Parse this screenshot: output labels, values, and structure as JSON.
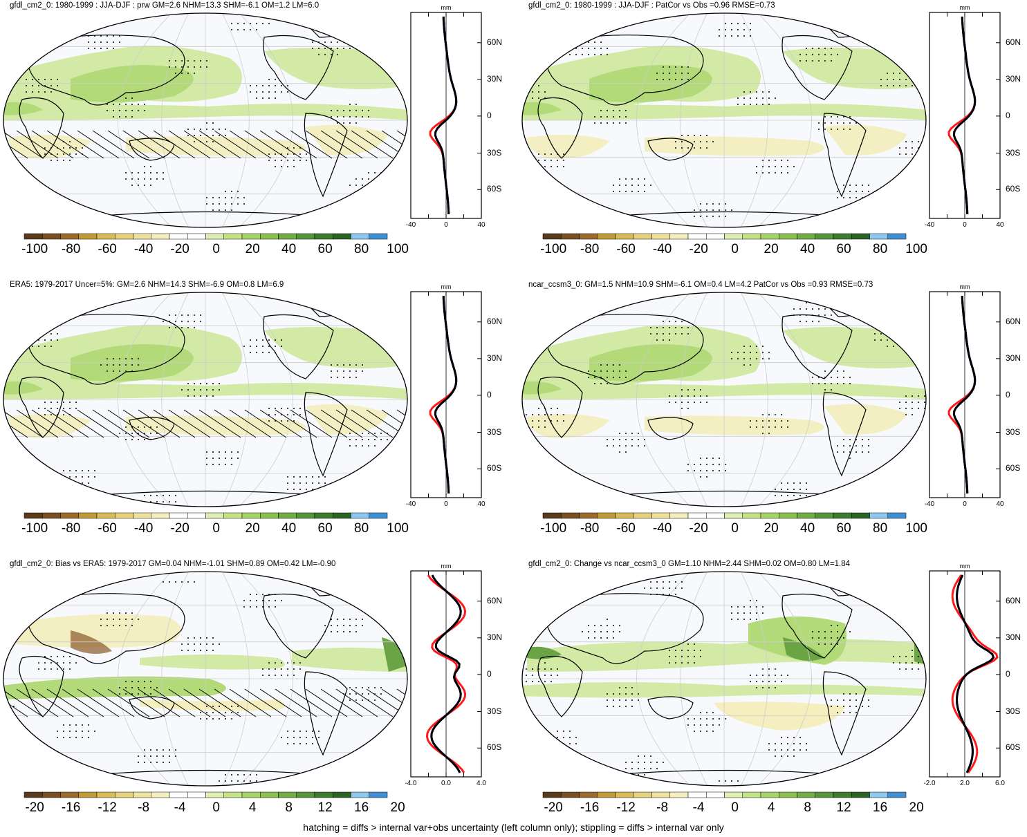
{
  "footer": "hatching = diffs > internal var+obs uncertainty (left column only); stippling = diffs > internal var only",
  "panels": [
    {
      "title": "gfdl_cm2_0: 1980-1999 : JJA-DJF : prw GM=2.6 NHM=13.3 SHM=-6.1 OM=1.2 LM=6.0",
      "unit": "mm",
      "xticks": [
        "-40",
        "0",
        "40"
      ],
      "cbar_labels": [
        "-100",
        "-80",
        "-60",
        "-40",
        "-20",
        "0",
        "20",
        "40",
        "60",
        "80",
        "100"
      ]
    },
    {
      "title": "gfdl_cm2_0: 1980-1999 : JJA-DJF : PatCor vs Obs =0.96 RMSE=0.73",
      "unit": "mm",
      "xticks": [
        "-40",
        "0",
        "40"
      ],
      "cbar_labels": [
        "-100",
        "-80",
        "-60",
        "-40",
        "-20",
        "0",
        "20",
        "40",
        "60",
        "80",
        "100"
      ]
    },
    {
      "title": "ERA5: 1979-2017 Uncer=5%: GM=2.6 NHM=14.3 SHM=-6.9 OM=0.8 LM=6.9",
      "unit": "mm",
      "xticks": [
        "-40",
        "0",
        "40"
      ],
      "cbar_labels": [
        "-100",
        "-80",
        "-60",
        "-40",
        "-20",
        "0",
        "20",
        "40",
        "60",
        "80",
        "100"
      ]
    },
    {
      "title": "ncar_ccsm3_0: GM=1.5 NHM=10.9 SHM=-6.1 OM=0.4 LM=4.2 PatCor vs Obs =0.93 RMSE=0.73",
      "unit": "mm",
      "xticks": [
        "-40",
        "0",
        "40"
      ],
      "cbar_labels": [
        "-100",
        "-80",
        "-60",
        "-40",
        "-20",
        "0",
        "20",
        "40",
        "60",
        "80",
        "100"
      ]
    },
    {
      "title": "gfdl_cm2_0: Bias vs ERA5: 1979-2017 GM=0.04 NHM=-1.01 SHM=0.89 OM=0.42 LM=-0.90",
      "unit": "mm",
      "xticks": [
        "-4.0",
        "0.0",
        "4.0"
      ],
      "cbar_labels": [
        "-20",
        "-16",
        "-12",
        "-8",
        "-4",
        "0",
        "4",
        "8",
        "12",
        "16",
        "20"
      ]
    },
    {
      "title": "gfdl_cm2_0: Change vs ncar_ccsm3_0 GM=1.10 NHM=2.44 SHM=0.02 OM=0.80 LM=1.84",
      "unit": "mm",
      "xticks": [
        "-2.0",
        "2.0",
        "6.0"
      ],
      "cbar_labels": [
        "-20",
        "-16",
        "-12",
        "-8",
        "-4",
        "0",
        "4",
        "8",
        "12",
        "16",
        "20"
      ]
    }
  ],
  "lat_labels": [
    "60N",
    "30N",
    "0",
    "30S",
    "60S"
  ],
  "colorbar_colors": [
    "#5a3a1c",
    "#7a4f24",
    "#9c6b2c",
    "#c09a38",
    "#d8bc5a",
    "#e6d27e",
    "#efe29e",
    "#f5eebf",
    "#ffffff",
    "#ffffff",
    "#ddefb3",
    "#c4e387",
    "#a8d26a",
    "#8cc152",
    "#72ad44",
    "#56963a",
    "#3c7d30",
    "#2c6426",
    "#8fc8ee",
    "#3f8fd2"
  ],
  "line_colors": {
    "model": "#ff1a1a",
    "obs": "#1a1aff",
    "mean": "#000000"
  }
}
